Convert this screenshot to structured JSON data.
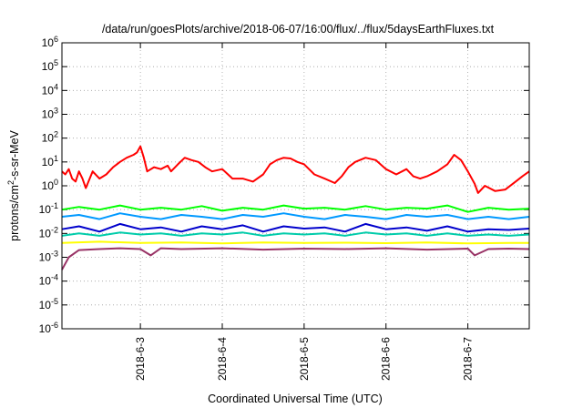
{
  "chart_data": {
    "type": "line",
    "title": "/data/run/goesPlots/archive/2018-06-07/16:00/flux/../flux/5daysEarthFluxes.txt",
    "xlabel": "Coordinated Universal Time (UTC)",
    "ylabel": {
      "base": "protons/cm",
      "sup": "2",
      "rest": "-s-sr-MeV"
    },
    "y_scale": "log",
    "ylim": [
      1e-06,
      1000000.0
    ],
    "xlim": [
      "2018-06-02T01:00",
      "2018-06-07T18:00"
    ],
    "grid": true,
    "y_ticks": [
      {
        "value": 1e-06,
        "base": "10",
        "exp": "-6"
      },
      {
        "value": 1e-05,
        "base": "10",
        "exp": "-5"
      },
      {
        "value": 0.0001,
        "base": "10",
        "exp": "-4"
      },
      {
        "value": 0.001,
        "base": "10",
        "exp": "-3"
      },
      {
        "value": 0.01,
        "base": "10",
        "exp": "-2"
      },
      {
        "value": 0.1,
        "base": "10",
        "exp": "-1"
      },
      {
        "value": 1,
        "base": "10",
        "exp": "0"
      },
      {
        "value": 10,
        "base": "10",
        "exp": "1"
      },
      {
        "value": 100,
        "base": "10",
        "exp": "2"
      },
      {
        "value": 1000,
        "base": "10",
        "exp": "3"
      },
      {
        "value": 10000,
        "base": "10",
        "exp": "4"
      },
      {
        "value": 100000,
        "base": "10",
        "exp": "5"
      },
      {
        "value": 1000000,
        "base": "10",
        "exp": "6"
      }
    ],
    "x_ticks": [
      {
        "value": "2018-06-03T00:00",
        "label": "2018-6-3"
      },
      {
        "value": "2018-06-04T00:00",
        "label": "2018-6-4"
      },
      {
        "value": "2018-06-05T00:00",
        "label": "2018-6-5"
      },
      {
        "value": "2018-06-06T00:00",
        "label": "2018-6-6"
      },
      {
        "value": "2018-06-07T00:00",
        "label": "2018-6-7"
      }
    ],
    "series": [
      {
        "color": "#ff0000",
        "x": [
          "2018-06-02T01:00",
          "2018-06-02T02:00",
          "2018-06-02T03:00",
          "2018-06-02T04:00",
          "2018-06-02T05:00",
          "2018-06-02T06:00",
          "2018-06-02T07:00",
          "2018-06-02T08:00",
          "2018-06-02T10:00",
          "2018-06-02T12:00",
          "2018-06-02T14:00",
          "2018-06-02T16:00",
          "2018-06-02T18:00",
          "2018-06-02T20:00",
          "2018-06-02T22:00",
          "2018-06-02T23:00",
          "2018-06-03T00:00",
          "2018-06-03T01:00",
          "2018-06-03T02:00",
          "2018-06-03T04:00",
          "2018-06-03T06:00",
          "2018-06-03T08:00",
          "2018-06-03T09:00",
          "2018-06-03T11:00",
          "2018-06-03T13:00",
          "2018-06-03T15:00",
          "2018-06-03T17:00",
          "2018-06-03T19:00",
          "2018-06-03T21:00",
          "2018-06-04T00:00",
          "2018-06-04T03:00",
          "2018-06-04T06:00",
          "2018-06-04T09:00",
          "2018-06-04T12:00",
          "2018-06-04T14:00",
          "2018-06-04T16:00",
          "2018-06-04T18:00",
          "2018-06-04T20:00",
          "2018-06-04T22:00",
          "2018-06-05T00:00",
          "2018-06-05T03:00",
          "2018-06-05T06:00",
          "2018-06-05T09:00",
          "2018-06-05T11:00",
          "2018-06-05T13:00",
          "2018-06-05T15:00",
          "2018-06-05T18:00",
          "2018-06-05T21:00",
          "2018-06-06T00:00",
          "2018-06-06T03:00",
          "2018-06-06T06:00",
          "2018-06-06T08:00",
          "2018-06-06T10:00",
          "2018-06-06T12:00",
          "2018-06-06T15:00",
          "2018-06-06T18:00",
          "2018-06-06T20:00",
          "2018-06-06T22:00",
          "2018-06-07T00:00",
          "2018-06-07T02:00",
          "2018-06-07T03:00",
          "2018-06-07T05:00",
          "2018-06-07T08:00",
          "2018-06-07T11:00",
          "2018-06-07T14:00",
          "2018-06-07T16:00",
          "2018-06-07T18:00"
        ],
        "y": [
          4,
          3,
          5,
          2,
          1.5,
          4,
          2,
          0.8,
          4,
          2,
          3,
          6,
          10,
          15,
          20,
          25,
          45,
          15,
          4,
          6,
          5,
          7,
          4,
          8,
          15,
          12,
          10,
          6,
          4,
          5,
          2,
          2,
          1.5,
          3,
          8,
          12,
          15,
          14,
          10,
          8,
          3,
          2,
          1.3,
          2.5,
          6,
          10,
          15,
          12,
          5,
          3,
          5,
          2.5,
          2,
          2.5,
          4,
          8,
          20,
          12,
          4,
          1.2,
          0.5,
          1,
          0.6,
          0.7,
          1.5,
          2.5,
          4
        ]
      },
      {
        "color": "#00ff00",
        "x": [
          "2018-06-02T01:00",
          "2018-06-02T06:00",
          "2018-06-02T12:00",
          "2018-06-02T18:00",
          "2018-06-03T00:00",
          "2018-06-03T06:00",
          "2018-06-03T12:00",
          "2018-06-03T18:00",
          "2018-06-04T00:00",
          "2018-06-04T06:00",
          "2018-06-04T12:00",
          "2018-06-04T18:00",
          "2018-06-05T00:00",
          "2018-06-05T06:00",
          "2018-06-05T12:00",
          "2018-06-05T18:00",
          "2018-06-06T00:00",
          "2018-06-06T06:00",
          "2018-06-06T12:00",
          "2018-06-06T18:00",
          "2018-06-07T00:00",
          "2018-06-07T06:00",
          "2018-06-07T12:00",
          "2018-06-07T18:00"
        ],
        "y": [
          0.1,
          0.13,
          0.1,
          0.15,
          0.1,
          0.12,
          0.1,
          0.14,
          0.09,
          0.12,
          0.1,
          0.15,
          0.11,
          0.12,
          0.1,
          0.14,
          0.1,
          0.12,
          0.11,
          0.15,
          0.08,
          0.12,
          0.1,
          0.11
        ]
      },
      {
        "color": "#0099ff",
        "x": [
          "2018-06-02T01:00",
          "2018-06-02T06:00",
          "2018-06-02T12:00",
          "2018-06-02T18:00",
          "2018-06-03T00:00",
          "2018-06-03T06:00",
          "2018-06-03T12:00",
          "2018-06-03T18:00",
          "2018-06-04T00:00",
          "2018-06-04T06:00",
          "2018-06-04T12:00",
          "2018-06-04T18:00",
          "2018-06-05T00:00",
          "2018-06-05T06:00",
          "2018-06-05T12:00",
          "2018-06-05T18:00",
          "2018-06-06T00:00",
          "2018-06-06T06:00",
          "2018-06-06T12:00",
          "2018-06-06T18:00",
          "2018-06-07T00:00",
          "2018-06-07T06:00",
          "2018-06-07T12:00",
          "2018-06-07T18:00"
        ],
        "y": [
          0.05,
          0.06,
          0.04,
          0.07,
          0.05,
          0.04,
          0.06,
          0.05,
          0.04,
          0.06,
          0.05,
          0.07,
          0.05,
          0.04,
          0.06,
          0.05,
          0.04,
          0.06,
          0.05,
          0.06,
          0.04,
          0.05,
          0.04,
          0.05
        ]
      },
      {
        "color": "#0000cc",
        "x": [
          "2018-06-02T01:00",
          "2018-06-02T06:00",
          "2018-06-02T12:00",
          "2018-06-02T18:00",
          "2018-06-03T00:00",
          "2018-06-03T06:00",
          "2018-06-03T12:00",
          "2018-06-03T18:00",
          "2018-06-04T00:00",
          "2018-06-04T06:00",
          "2018-06-04T12:00",
          "2018-06-04T18:00",
          "2018-06-05T00:00",
          "2018-06-05T06:00",
          "2018-06-05T12:00",
          "2018-06-05T18:00",
          "2018-06-06T00:00",
          "2018-06-06T06:00",
          "2018-06-06T12:00",
          "2018-06-06T18:00",
          "2018-06-07T00:00",
          "2018-06-07T06:00",
          "2018-06-07T12:00",
          "2018-06-07T18:00"
        ],
        "y": [
          0.015,
          0.02,
          0.012,
          0.025,
          0.015,
          0.018,
          0.012,
          0.02,
          0.015,
          0.022,
          0.012,
          0.02,
          0.016,
          0.018,
          0.012,
          0.025,
          0.015,
          0.018,
          0.013,
          0.02,
          0.012,
          0.015,
          0.014,
          0.016
        ]
      },
      {
        "color": "#00ccaa",
        "x": [
          "2018-06-02T01:00",
          "2018-06-02T06:00",
          "2018-06-02T12:00",
          "2018-06-02T18:00",
          "2018-06-03T00:00",
          "2018-06-03T06:00",
          "2018-06-03T12:00",
          "2018-06-03T18:00",
          "2018-06-04T00:00",
          "2018-06-04T06:00",
          "2018-06-04T12:00",
          "2018-06-04T18:00",
          "2018-06-05T00:00",
          "2018-06-05T06:00",
          "2018-06-05T12:00",
          "2018-06-05T18:00",
          "2018-06-06T00:00",
          "2018-06-06T06:00",
          "2018-06-06T12:00",
          "2018-06-06T18:00",
          "2018-06-07T00:00",
          "2018-06-07T06:00",
          "2018-06-07T12:00",
          "2018-06-07T18:00"
        ],
        "y": [
          0.008,
          0.01,
          0.008,
          0.011,
          0.009,
          0.01,
          0.008,
          0.01,
          0.009,
          0.011,
          0.008,
          0.01,
          0.009,
          0.01,
          0.008,
          0.011,
          0.009,
          0.01,
          0.008,
          0.01,
          0.008,
          0.009,
          0.008,
          0.009
        ]
      },
      {
        "color": "#ffff00",
        "x": [
          "2018-06-02T01:00",
          "2018-06-02T12:00",
          "2018-06-03T00:00",
          "2018-06-03T12:00",
          "2018-06-04T00:00",
          "2018-06-04T12:00",
          "2018-06-05T00:00",
          "2018-06-05T12:00",
          "2018-06-06T00:00",
          "2018-06-06T12:00",
          "2018-06-07T00:00",
          "2018-06-07T12:00",
          "2018-06-07T18:00"
        ],
        "y": [
          0.004,
          0.0045,
          0.004,
          0.0042,
          0.0038,
          0.0042,
          0.004,
          0.0041,
          0.0039,
          0.0042,
          0.0038,
          0.004,
          0.004
        ]
      },
      {
        "color": "#993366",
        "x": [
          "2018-06-02T01:00",
          "2018-06-02T03:00",
          "2018-06-02T06:00",
          "2018-06-02T12:00",
          "2018-06-02T18:00",
          "2018-06-03T00:00",
          "2018-06-03T03:00",
          "2018-06-03T06:00",
          "2018-06-03T12:00",
          "2018-06-04T00:00",
          "2018-06-04T12:00",
          "2018-06-05T00:00",
          "2018-06-05T12:00",
          "2018-06-06T00:00",
          "2018-06-06T12:00",
          "2018-06-07T00:00",
          "2018-06-07T02:00",
          "2018-06-07T06:00",
          "2018-06-07T12:00",
          "2018-06-07T18:00"
        ],
        "y": [
          0.0003,
          0.001,
          0.002,
          0.0022,
          0.0024,
          0.0022,
          0.0012,
          0.0024,
          0.0022,
          0.0024,
          0.0021,
          0.0023,
          0.0022,
          0.0024,
          0.0021,
          0.0023,
          0.0012,
          0.0022,
          0.0023,
          0.0022
        ]
      }
    ]
  }
}
